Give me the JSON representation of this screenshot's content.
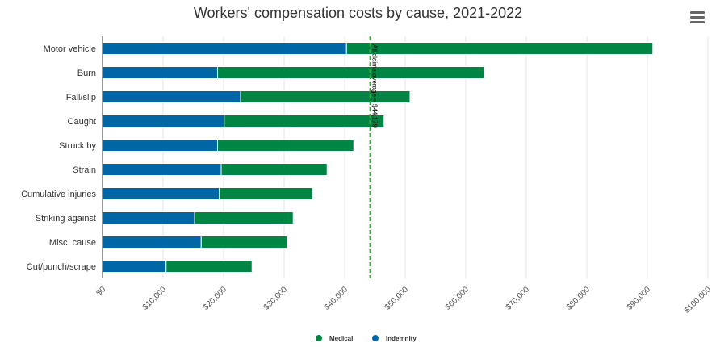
{
  "chart_data": {
    "type": "bar",
    "orientation": "horizontal",
    "stacked": true,
    "title": "Workers' compensation costs by cause, 2021-2022",
    "categories": [
      "Motor vehicle",
      "Burn",
      "Fall/slip",
      "Caught",
      "Struck by",
      "Strain",
      "Cumulative injuries",
      "Striking against",
      "Misc. cause",
      "Cut/punch/scrape"
    ],
    "series": [
      {
        "name": "Indemnity",
        "color": "#0066a6",
        "values": [
          40300,
          19000,
          22800,
          20100,
          19000,
          19600,
          19300,
          15200,
          16300,
          10500
        ]
      },
      {
        "name": "Medical",
        "color": "#008544",
        "values": [
          50600,
          44100,
          28000,
          26400,
          22500,
          17500,
          15400,
          16300,
          14200,
          14200
        ]
      }
    ],
    "xlim": [
      0,
      100000
    ],
    "xticks": [
      0,
      10000,
      20000,
      30000,
      40000,
      50000,
      60000,
      70000,
      80000,
      90000,
      100000
    ],
    "xtick_labels": [
      "$0",
      "$10,000",
      "$20,000",
      "$30,000",
      "$40,000",
      "$50,000",
      "$60,000",
      "$70,000",
      "$80,000",
      "$90,000",
      "$100,000"
    ],
    "reference_line": {
      "value": 44179,
      "label": "All claims average = $44,179",
      "color": "#3aa935"
    },
    "legend": {
      "placement": "bottom-center",
      "entries": [
        {
          "name": "Medical",
          "color": "#008544"
        },
        {
          "name": "Indemnity",
          "color": "#0066a6"
        }
      ]
    },
    "grid": "vertical"
  },
  "ui": {
    "menu_icon": "hamburger-menu-icon"
  }
}
